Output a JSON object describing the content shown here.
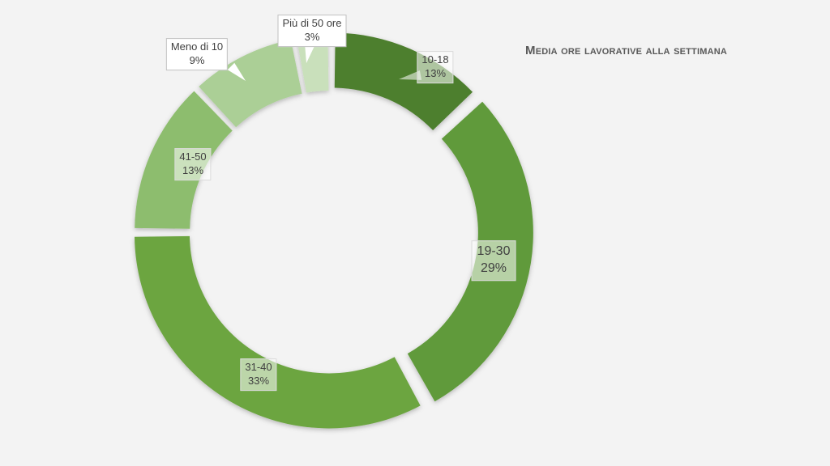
{
  "chart_data": {
    "type": "pie",
    "style": "donut",
    "title": "Media ore lavorative alla settimana",
    "slices": [
      {
        "label": "10-18",
        "value": 13,
        "percent_label": "13%",
        "color": "#4e7f2f"
      },
      {
        "label": "19-30",
        "value": 29,
        "percent_label": "29%",
        "color": "#609a3a"
      },
      {
        "label": "31-40",
        "value": 33,
        "percent_label": "33%",
        "color": "#6ca541"
      },
      {
        "label": "41-50",
        "value": 13,
        "percent_label": "13%",
        "color": "#8dbd6e"
      },
      {
        "label": "Meno di 10",
        "value": 9,
        "percent_label": "9%",
        "color": "#abcf96"
      },
      {
        "label": "Più di 50 ore",
        "value": 3,
        "percent_label": "3%",
        "color": "#c9e0bb"
      }
    ]
  }
}
